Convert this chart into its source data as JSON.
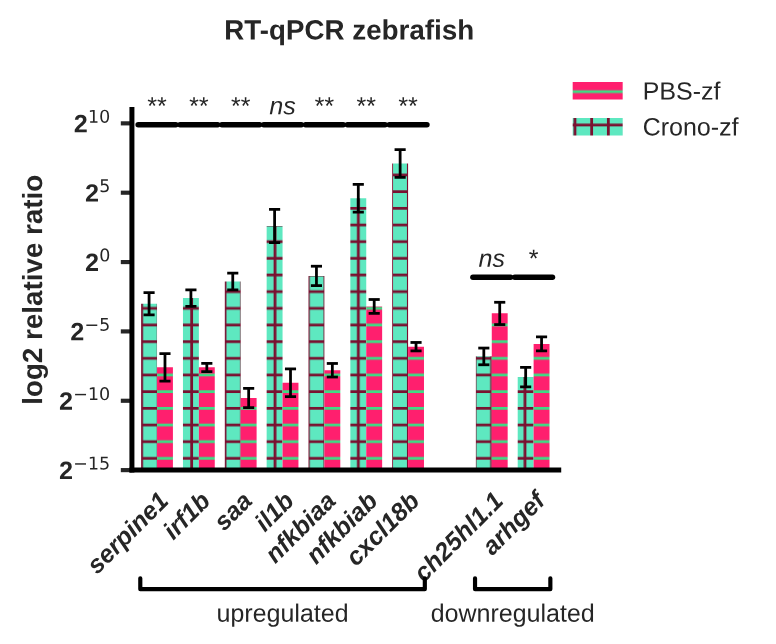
{
  "chart_data": {
    "type": "bar",
    "title": "RT-qPCR zebrafish",
    "ylabel": "log2 relative ratio",
    "categories": [
      "serpine1",
      "irf1b",
      "saa",
      "il1b",
      "nfkbiaa",
      "nfkbiab",
      "cxcl18b",
      null,
      "ch25hl1.1",
      "arhgef"
    ],
    "series": [
      {
        "name": "Crono-zf",
        "color": "#5ee8c0",
        "values": [
          0.125,
          0.165,
          0.379,
          6.06,
          0.5,
          24.3,
          137,
          null,
          0.009,
          0.0032
        ],
        "errors": [
          [
            0.0718,
            0.218
          ],
          [
            0.109,
            0.25
          ],
          [
            0.25,
            0.574
          ],
          [
            2.64,
            13.9
          ],
          [
            0.308,
            0.812
          ],
          [
            12.1,
            48.5
          ],
          [
            68.6,
            274
          ],
          null,
          [
            0.0059,
            0.0136
          ],
          [
            0.00195,
            0.0052
          ]
        ]
      },
      {
        "name": "PBS-zf",
        "color": "#ff1f6e",
        "values": [
          0.0052,
          0.0052,
          0.00112,
          0.0024,
          0.0045,
          0.109,
          0.0146,
          null,
          0.077,
          0.0167
        ],
        "errors": [
          [
            0.0026,
            0.0103
          ],
          [
            0.0042,
            0.0063
          ],
          [
            0.00069,
            0.00182
          ],
          [
            0.0012,
            0.0048
          ],
          [
            0.0032,
            0.0063
          ],
          [
            0.077,
            0.154
          ],
          [
            0.0118,
            0.018
          ],
          null,
          [
            0.044,
            0.134
          ],
          [
            0.0118,
            0.0237
          ]
        ]
      }
    ],
    "log": "y",
    "ylim": [
      3.0517578125e-05,
      2048
    ],
    "yticks": [
      {
        "value": 3.0517578125e-05,
        "label": "2$^{−15}$"
      },
      {
        "value": 0.0009765625,
        "label": "2$^{−10}$"
      },
      {
        "value": 0.03125,
        "label": "2$^{−5}$"
      },
      {
        "value": 1,
        "label": "2$^{0}$"
      },
      {
        "value": 32,
        "label": "2$^{5}$"
      },
      {
        "value": 1024,
        "label": "2$^{10}$"
      }
    ],
    "annotations": [
      "**",
      "**",
      "**",
      "ns",
      "**",
      "**",
      "**",
      "ns",
      "*",
      "upregulated",
      "downregulated"
    ],
    "legend": "top right",
    "grid": false
  }
}
